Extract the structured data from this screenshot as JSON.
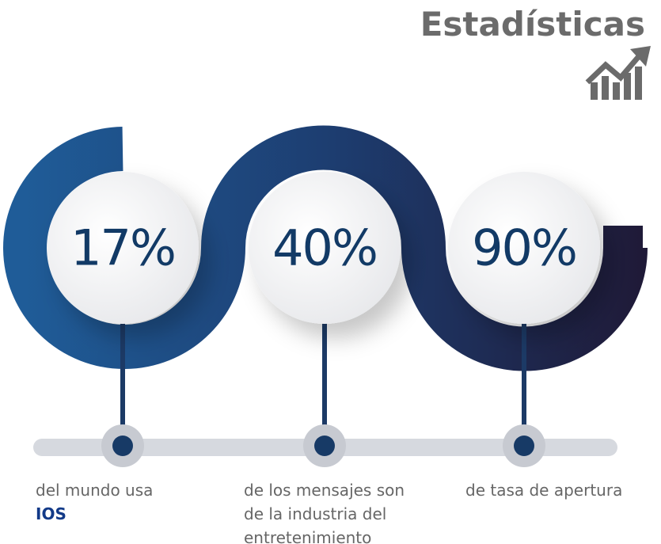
{
  "header": {
    "title": "Estadísticas"
  },
  "stats": [
    {
      "value": "17%",
      "caption": [
        "del mundo usa",
        "IOS"
      ]
    },
    {
      "value": "40%",
      "caption": [
        "de los mensajes son",
        "de la industria del",
        "entretenimiento"
      ]
    },
    {
      "value": "90%",
      "caption": [
        "de tasa de apertura"
      ]
    }
  ]
}
